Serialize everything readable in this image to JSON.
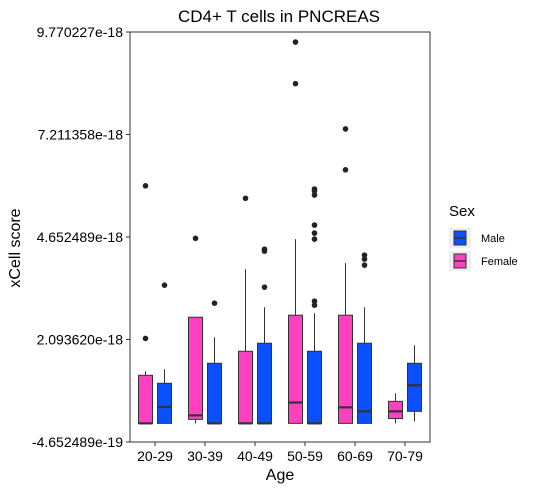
{
  "chart_data": {
    "type": "boxplot",
    "title": "CD4+ T cells in PNCREAS",
    "xlabel": "Age",
    "ylabel": "xCell score",
    "categories": [
      "20-29",
      "30-39",
      "40-49",
      "50-59",
      "60-69",
      "70-79"
    ],
    "y_ticks": [
      -4.652489e-19,
      2.09362e-18,
      4.652489e-18,
      7.211358e-18,
      9.770227e-18
    ],
    "y_tick_labels": [
      "-4.652489e-19",
      "2.093620e-18",
      "4.652489e-18",
      "7.211358e-18",
      "9.770227e-18"
    ],
    "ylim": [
      -4.652489e-19,
      9.770227e-18
    ],
    "legend": {
      "title": "Sex",
      "position": "right"
    },
    "colors": {
      "Female": "#FF40C0",
      "Male": "#0A50FF",
      "box_stroke": "#333333"
    },
    "series": [
      {
        "name": "Male",
        "boxes": [
          {
            "category": "20-29",
            "min": 0.0,
            "q1": 0.0,
            "median": 4.1e-19,
            "q3": 1e-18,
            "max": 1.35e-18,
            "outliers": [
              3.45e-18
            ]
          },
          {
            "category": "30-39",
            "min": 0.0,
            "q1": 0.0,
            "median": 0.0,
            "q3": 1.5e-18,
            "max": 2.15e-18,
            "outliers": [
              3e-18
            ]
          },
          {
            "category": "40-49",
            "min": 0.0,
            "q1": 0.0,
            "median": 0.0,
            "q3": 2e-18,
            "max": 2.9e-18,
            "outliers": [
              3.4e-18,
              4.3e-18,
              4.35e-18
            ]
          },
          {
            "category": "50-59",
            "min": 0.0,
            "q1": 0.0,
            "median": 0.0,
            "q3": 1.8e-18,
            "max": 2.75e-18,
            "outliers": [
              2.95e-18,
              3.05e-18,
              4.6e-18,
              4.75e-18,
              4.95e-18,
              5.7e-18,
              5.8e-18,
              5.85e-18
            ]
          },
          {
            "category": "60-69",
            "min": 0.0,
            "q1": 0.0,
            "median": 3e-19,
            "q3": 2e-18,
            "max": 2.9e-18,
            "outliers": [
              3.95e-18,
              4.1e-18,
              4.2e-18
            ]
          },
          {
            "category": "70-79",
            "min": 5e-20,
            "q1": 3e-19,
            "median": 9.5e-19,
            "q3": 1.5e-18,
            "max": 1.95e-18,
            "outliers": []
          }
        ]
      },
      {
        "name": "Female",
        "boxes": [
          {
            "category": "20-29",
            "min": 0.0,
            "q1": 0.0,
            "median": 0.0,
            "q3": 1.2e-18,
            "max": 1.3e-18,
            "outliers": [
              2.12e-18,
              5.93e-18
            ]
          },
          {
            "category": "30-39",
            "min": 0.0,
            "q1": 1e-19,
            "median": 2e-19,
            "q3": 2.65e-18,
            "max": 2.65e-18,
            "outliers": [
              4.62e-18
            ]
          },
          {
            "category": "40-49",
            "min": 0.0,
            "q1": 0.0,
            "median": 0.0,
            "q3": 1.8e-18,
            "max": 3.85e-18,
            "outliers": [
              5.62e-18
            ]
          },
          {
            "category": "50-59",
            "min": 0.0,
            "q1": 0.0,
            "median": 5.2e-19,
            "q3": 2.7e-18,
            "max": 4.6e-18,
            "outliers": [
              8.48e-18,
              9.52e-18
            ]
          },
          {
            "category": "60-69",
            "min": 0.0,
            "q1": 0.0,
            "median": 4e-19,
            "q3": 2.7e-18,
            "max": 4e-18,
            "outliers": [
              6.33e-18,
              7.35e-18
            ]
          },
          {
            "category": "70-79",
            "min": 0.0,
            "q1": 1.2e-19,
            "median": 3e-19,
            "q3": 5.5e-19,
            "max": 7.5e-19,
            "outliers": []
          }
        ]
      }
    ]
  }
}
